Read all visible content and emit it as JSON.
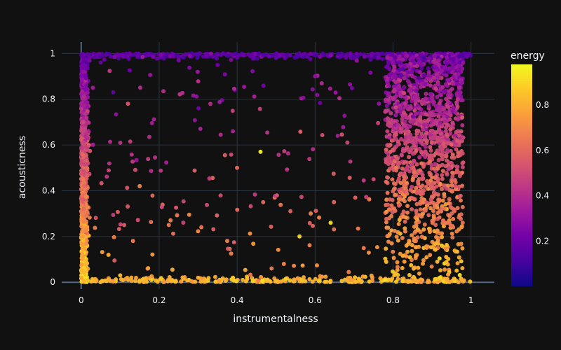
{
  "chart_data": {
    "type": "scatter",
    "title": "",
    "xlabel": "instrumentalness",
    "ylabel": "acousticness",
    "xlim": [
      -0.05,
      1.06
    ],
    "ylim": [
      -0.03,
      1.05
    ],
    "x_ticks": [
      0,
      0.2,
      0.4,
      0.6,
      0.8,
      1
    ],
    "x_tick_labels": [
      "0",
      "0.2",
      "0.4",
      "0.6",
      "0.8",
      "1"
    ],
    "y_ticks": [
      0,
      0.2,
      0.4,
      0.6,
      0.8,
      1
    ],
    "y_tick_labels": [
      "0",
      "0.2",
      "0.4",
      "0.6",
      "0.8",
      "1"
    ],
    "grid": true,
    "colorbar": {
      "title": "energy",
      "range": [
        0.0,
        0.98
      ],
      "ticks": [
        0.2,
        0.4,
        0.6,
        0.8
      ],
      "tick_labels": [
        "0.2",
        "0.4",
        "0.6",
        "0.8"
      ],
      "colorscale": "plasma",
      "colors": [
        "#0d0887",
        "#46039f",
        "#7201a8",
        "#9c179e",
        "#bd3786",
        "#d8576b",
        "#ed7953",
        "#fb9f3a",
        "#fdca26",
        "#f0f921"
      ]
    },
    "background": "#111111",
    "point_groups": [
      {
        "x": 0.005,
        "y": 0.05,
        "energy": 0.82
      },
      {
        "x": 0.005,
        "y": 0.2,
        "energy": 0.75
      },
      {
        "x": 0.005,
        "y": 0.45,
        "energy": 0.65
      },
      {
        "x": 0.005,
        "y": 0.7,
        "energy": 0.5
      },
      {
        "x": 0.005,
        "y": 0.92,
        "energy": 0.3
      },
      {
        "x": 0.01,
        "y": 0.02,
        "energy": 0.9
      },
      {
        "x": 0.02,
        "y": 0.6,
        "energy": 0.55
      },
      {
        "x": 0.03,
        "y": 0.85,
        "energy": 0.35
      },
      {
        "x": 0.05,
        "y": 0.96,
        "energy": 0.2
      },
      {
        "x": 0.07,
        "y": 0.12,
        "energy": 0.8
      },
      {
        "x": 0.1,
        "y": 0.03,
        "energy": 0.85
      },
      {
        "x": 0.12,
        "y": 0.78,
        "energy": 0.55
      },
      {
        "x": 0.15,
        "y": 0.42,
        "energy": 0.7
      },
      {
        "x": 0.18,
        "y": 0.01,
        "energy": 0.88
      },
      {
        "x": 0.25,
        "y": 0.97,
        "energy": 0.25
      },
      {
        "x": 0.3,
        "y": 0.02,
        "energy": 0.8
      },
      {
        "x": 0.35,
        "y": 0.95,
        "energy": 0.22
      },
      {
        "x": 0.4,
        "y": 0.5,
        "energy": 0.6
      },
      {
        "x": 0.46,
        "y": 0.57,
        "energy": 0.96
      },
      {
        "x": 0.5,
        "y": 0.98,
        "energy": 0.18
      },
      {
        "x": 0.52,
        "y": 0.08,
        "energy": 0.7
      },
      {
        "x": 0.56,
        "y": 0.2,
        "energy": 0.9
      },
      {
        "x": 0.6,
        "y": 0.9,
        "energy": 0.3
      },
      {
        "x": 0.64,
        "y": 0.26,
        "energy": 0.92
      },
      {
        "x": 0.7,
        "y": 0.98,
        "energy": 0.15
      },
      {
        "x": 0.75,
        "y": 0.45,
        "energy": 0.5
      },
      {
        "x": 0.78,
        "y": 0.01,
        "energy": 0.93
      },
      {
        "x": 0.8,
        "y": 0.7,
        "energy": 0.45
      },
      {
        "x": 0.85,
        "y": 0.9,
        "energy": 0.35
      },
      {
        "x": 0.88,
        "y": 0.98,
        "energy": 0.12
      },
      {
        "x": 0.9,
        "y": 0.55,
        "energy": 0.5
      },
      {
        "x": 0.92,
        "y": 0.02,
        "energy": 0.9
      },
      {
        "x": 0.95,
        "y": 0.3,
        "energy": 0.6
      },
      {
        "x": 0.97,
        "y": 0.85,
        "energy": 0.38
      }
    ]
  }
}
